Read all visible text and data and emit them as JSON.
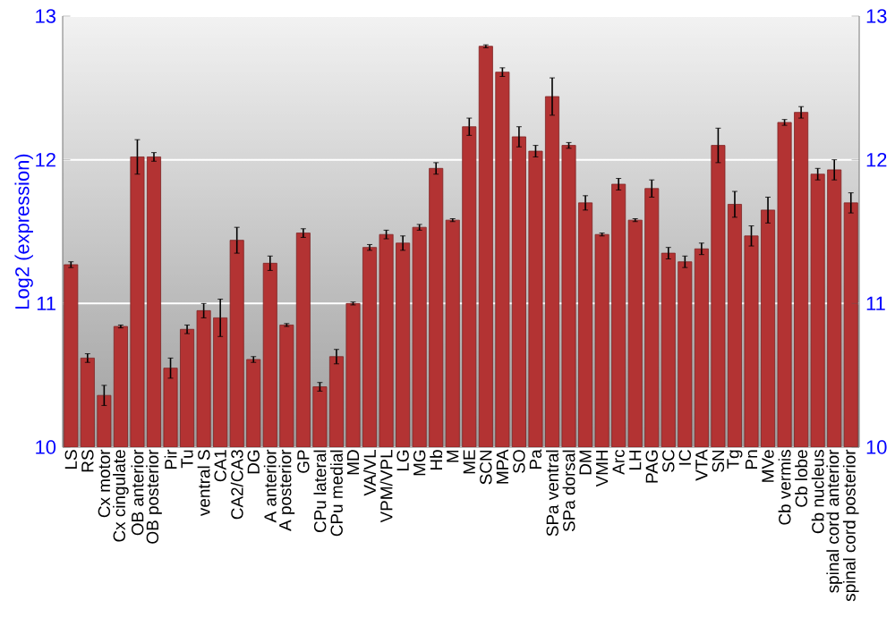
{
  "chart_data": {
    "type": "bar",
    "ylabel": "Log2 (expression)",
    "categories": [
      "LS",
      "RS",
      "Cx motor",
      "Cx cingulate",
      "OB anterior",
      "OB posterior",
      "Pir",
      "Tu",
      "ventral S",
      "CA1",
      "CA2/CA3",
      "DG",
      "A anterior",
      "A posterior",
      "GP",
      "CPu lateral",
      "CPu medial",
      "MD",
      "VA/VL",
      "VPM/VPL",
      "LG",
      "MG",
      "Hb",
      "M",
      "ME",
      "SCN",
      "MPA",
      "SO",
      "Pa",
      "SPa ventral",
      "SPa dorsal",
      "DM",
      "VMH",
      "Arc",
      "LH",
      "PAG",
      "SC",
      "IC",
      "VTA",
      "SN",
      "Tg",
      "Pn",
      "MVe",
      "Cb vermis",
      "Cb lobe",
      "Cb nucleus",
      "spinal cord anterior",
      "spinal cord posterior"
    ],
    "values": [
      11.27,
      10.62,
      10.36,
      10.84,
      12.02,
      12.02,
      10.55,
      10.82,
      10.95,
      10.9,
      11.44,
      10.61,
      11.28,
      10.85,
      11.49,
      10.42,
      10.63,
      11.0,
      11.39,
      11.48,
      11.42,
      11.53,
      11.94,
      11.58,
      12.23,
      12.79,
      12.61,
      12.16,
      12.06,
      12.44,
      12.1,
      11.7,
      11.48,
      11.83,
      11.58,
      11.8,
      11.35,
      11.29,
      11.38,
      12.1,
      11.69,
      11.47,
      11.65,
      12.26,
      12.33,
      11.9,
      11.93,
      11.7
    ],
    "errors": [
      0.02,
      0.03,
      0.07,
      0.01,
      0.12,
      0.03,
      0.07,
      0.03,
      0.05,
      0.13,
      0.09,
      0.02,
      0.05,
      0.01,
      0.03,
      0.03,
      0.05,
      0.01,
      0.02,
      0.03,
      0.05,
      0.02,
      0.04,
      0.01,
      0.06,
      0.01,
      0.03,
      0.07,
      0.04,
      0.13,
      0.02,
      0.05,
      0.01,
      0.04,
      0.01,
      0.06,
      0.04,
      0.04,
      0.04,
      0.12,
      0.09,
      0.07,
      0.09,
      0.02,
      0.04,
      0.04,
      0.07,
      0.07
    ],
    "color": "#b33333",
    "ylim": [
      10,
      13
    ],
    "yticks": [
      10,
      11,
      12,
      13
    ],
    "y2lim": [
      10,
      13
    ],
    "y2ticks": [
      10,
      11,
      12,
      13
    ],
    "grid": "y"
  }
}
